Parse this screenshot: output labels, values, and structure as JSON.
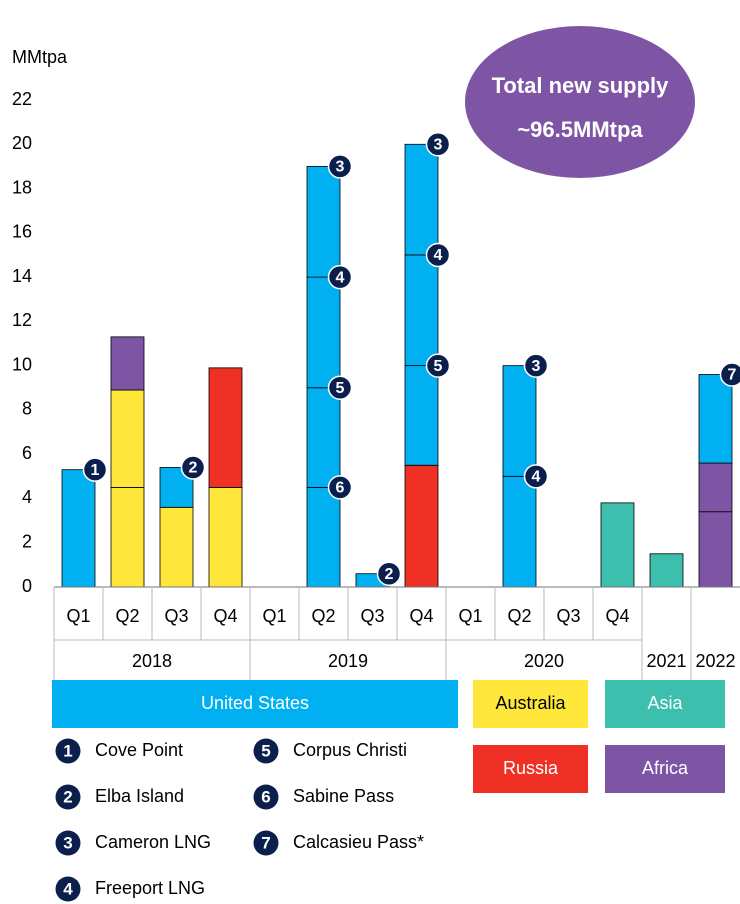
{
  "chart_data": {
    "type": "stacked-bar",
    "ylabel": "MMtpa",
    "annotation": [
      "Total new supply",
      "~96.5MMtpa"
    ],
    "categories": [
      {
        "quarter": "Q1",
        "year": "2018"
      },
      {
        "quarter": "Q2",
        "year": "2018"
      },
      {
        "quarter": "Q3",
        "year": "2018"
      },
      {
        "quarter": "Q4",
        "year": "2018"
      },
      {
        "quarter": "Q1",
        "year": "2019"
      },
      {
        "quarter": "Q2",
        "year": "2019"
      },
      {
        "quarter": "Q3",
        "year": "2019"
      },
      {
        "quarter": "Q4",
        "year": "2019"
      },
      {
        "quarter": "Q1",
        "year": "2020"
      },
      {
        "quarter": "Q2",
        "year": "2020"
      },
      {
        "quarter": "Q3",
        "year": "2020"
      },
      {
        "quarter": "Q4",
        "year": "2020"
      },
      {
        "quarter": null,
        "year": "2021"
      },
      {
        "quarter": null,
        "year": "2022"
      }
    ],
    "ylim": [
      0,
      22
    ],
    "yticks": [
      0,
      2,
      4,
      6,
      8,
      10,
      12,
      14,
      16,
      18,
      20,
      22
    ],
    "series": [
      {
        "name": "Australia",
        "color": "#ffe63b",
        "text_color": "#000000",
        "values": [
          null,
          [
            4.5,
            4.4
          ],
          [
            3.6
          ],
          [
            4.5
          ],
          null,
          null,
          null,
          null,
          null,
          null,
          null,
          null,
          null,
          null
        ]
      },
      {
        "name": "Russia",
        "color": "#ee3124",
        "text_color": "#ffffff",
        "values": [
          null,
          null,
          null,
          [
            5.4
          ],
          null,
          null,
          null,
          [
            5.5
          ],
          null,
          null,
          null,
          null,
          null,
          null
        ]
      },
      {
        "name": "Asia",
        "color": "#3dbfad",
        "text_color": "#ffffff",
        "values": [
          null,
          null,
          null,
          null,
          null,
          null,
          null,
          null,
          null,
          null,
          null,
          [
            3.8
          ],
          [
            1.5
          ],
          null
        ]
      },
      {
        "name": "Africa",
        "color": "#7e55a5",
        "text_color": "#ffffff",
        "values": [
          null,
          [
            2.4
          ],
          null,
          null,
          null,
          null,
          null,
          null,
          null,
          null,
          null,
          null,
          null,
          [
            3.4,
            2.2
          ]
        ]
      },
      {
        "name": "United States",
        "color": "#00b0f0",
        "text_color": "#ffffff",
        "values": [
          [
            5.3
          ],
          null,
          [
            1.8
          ],
          null,
          null,
          [
            4.5,
            4.5,
            5,
            5
          ],
          [
            0.6
          ],
          [
            4.5,
            5,
            5
          ],
          null,
          [
            5,
            5
          ],
          null,
          null,
          null,
          [
            4
          ]
        ],
        "markers": [
          [
            "1"
          ],
          null,
          [
            "2"
          ],
          null,
          null,
          [
            "6",
            "5",
            "4",
            "3"
          ],
          [
            "2"
          ],
          [
            "5",
            "4",
            "3"
          ],
          null,
          [
            "4",
            "3"
          ],
          null,
          null,
          null,
          [
            "7"
          ]
        ]
      }
    ],
    "projects": [
      {
        "number": "1",
        "name": "Cove Point"
      },
      {
        "number": "2",
        "name": "Elba Island"
      },
      {
        "number": "3",
        "name": "Cameron LNG"
      },
      {
        "number": "4",
        "name": "Freeport LNG"
      },
      {
        "number": "5",
        "name": "Corpus Christi"
      },
      {
        "number": "6",
        "name": "Sabine Pass"
      },
      {
        "number": "7",
        "name": "Calcasieu Pass*"
      }
    ]
  }
}
